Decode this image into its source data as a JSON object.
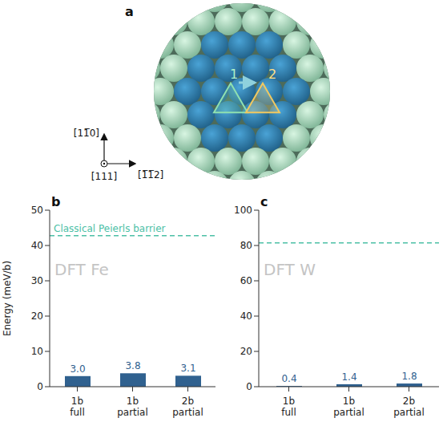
{
  "chart_data": [
    {
      "type": "bar",
      "panel_label": "b",
      "title": "DFT Fe",
      "y_label": "Energy (meV/b)",
      "categories": [
        "1b full",
        "1b partial",
        "2b partial"
      ],
      "values": [
        3.0,
        3.8,
        3.1
      ],
      "value_labels": [
        "3.0",
        "3.8",
        "3.1"
      ],
      "data_labels": true,
      "color": "#30618f",
      "ylim": [
        0,
        50
      ],
      "yticks": [
        0,
        10,
        20,
        30,
        40,
        50
      ],
      "reference_line": {
        "value": 42.8,
        "label": "Classical Peierls barrier",
        "color": "#4cc0a6",
        "line_style": "dashed"
      }
    },
    {
      "type": "bar",
      "panel_label": "c",
      "title": "DFT W",
      "categories": [
        "1b full",
        "1b partial",
        "2b partial"
      ],
      "values": [
        0.4,
        1.4,
        1.8
      ],
      "value_labels": [
        "0.4",
        "1.4",
        "1.8"
      ],
      "data_labels": true,
      "color": "#30618f",
      "ylim": [
        0,
        100
      ],
      "yticks": [
        0,
        20,
        40,
        60,
        80,
        100
      ],
      "reference_line": {
        "value": 81.5,
        "color": "#4cc0a6",
        "line_style": "dashed"
      }
    }
  ],
  "diagram": {
    "panel_label": "a",
    "sites": [
      "1",
      "2"
    ],
    "directions": {
      "up": "[11̅0]",
      "right": "[1̅1̅2]",
      "out": "[111]"
    }
  }
}
